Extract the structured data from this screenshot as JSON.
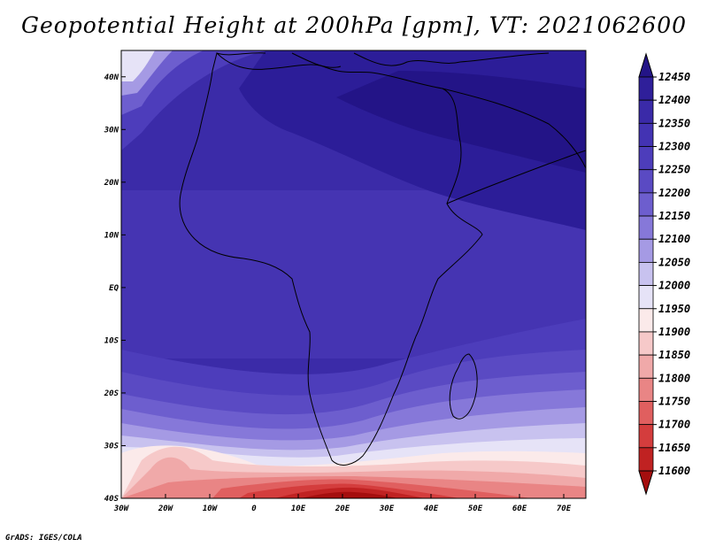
{
  "title": "Geopotential Height at 200hPa [gpm], VT: 2021062600",
  "credit": "GrADS: IGES/COLA",
  "map": {
    "lon_range": [
      -30,
      75
    ],
    "lat_range": [
      -40,
      45
    ],
    "lon_ticks": [
      {
        "value": -30,
        "label": "30W"
      },
      {
        "value": -20,
        "label": "20W"
      },
      {
        "value": -10,
        "label": "10W"
      },
      {
        "value": 0,
        "label": "0"
      },
      {
        "value": 10,
        "label": "10E"
      },
      {
        "value": 20,
        "label": "20E"
      },
      {
        "value": 30,
        "label": "30E"
      },
      {
        "value": 40,
        "label": "40E"
      },
      {
        "value": 50,
        "label": "50E"
      },
      {
        "value": 60,
        "label": "60E"
      },
      {
        "value": 70,
        "label": "70E"
      }
    ],
    "lat_ticks": [
      {
        "value": 40,
        "label": "40N"
      },
      {
        "value": 30,
        "label": "30N"
      },
      {
        "value": 20,
        "label": "20N"
      },
      {
        "value": 10,
        "label": "10N"
      },
      {
        "value": 0,
        "label": "EQ"
      },
      {
        "value": -10,
        "label": "10S"
      },
      {
        "value": -20,
        "label": "20S"
      },
      {
        "value": -30,
        "label": "30S"
      },
      {
        "value": -40,
        "label": "40S"
      }
    ]
  },
  "colorbar": {
    "labels": [
      "12450",
      "12400",
      "12350",
      "12300",
      "12250",
      "12200",
      "12150",
      "12100",
      "12050",
      "12000",
      "11950",
      "11900",
      "11850",
      "11800",
      "11750",
      "11700",
      "11650",
      "11600"
    ],
    "colors": [
      "#231487",
      "#2f1f9a",
      "#3a2aa8",
      "#4333b3",
      "#4d3dbb",
      "#5a4ac3",
      "#6d5ece",
      "#8678d9",
      "#a59ae4",
      "#c8c2ef",
      "#e6e3f7",
      "#fbeaea",
      "#f6c9c9",
      "#f0a9a9",
      "#e98585",
      "#e05f5f",
      "#d43d3d",
      "#c02222",
      "#a50e0e"
    ]
  }
}
